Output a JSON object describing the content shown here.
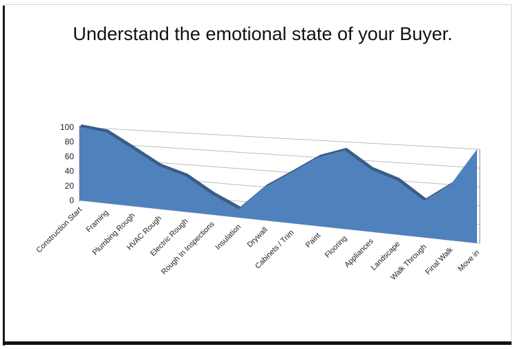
{
  "slide": {
    "title": "Understand the emotional state of your Buyer."
  },
  "chart_data": {
    "type": "area",
    "title": "",
    "xlabel": "",
    "ylabel": "",
    "ylim": [
      0,
      100
    ],
    "yticks": [
      0,
      20,
      40,
      60,
      80,
      100
    ],
    "grid": true,
    "legend": "none",
    "three_d": true,
    "fill_color": "#4f81bd",
    "edge_color": "#1f3864",
    "categories": [
      "Construction Start",
      "Framing",
      "Plumbing Rough",
      "HVAC Rough",
      "Electric Rough",
      "Rough In Inspections",
      "Insulation",
      "Drywall",
      "Cabinets / Trim",
      "Paint",
      "Flooring",
      "Appliances",
      "Landscape",
      "Walk Through",
      "Final Walk",
      "Move in"
    ],
    "values": [
      100,
      95,
      75,
      55,
      45,
      25,
      10,
      40,
      60,
      80,
      90,
      70,
      60,
      40,
      60,
      100
    ]
  }
}
